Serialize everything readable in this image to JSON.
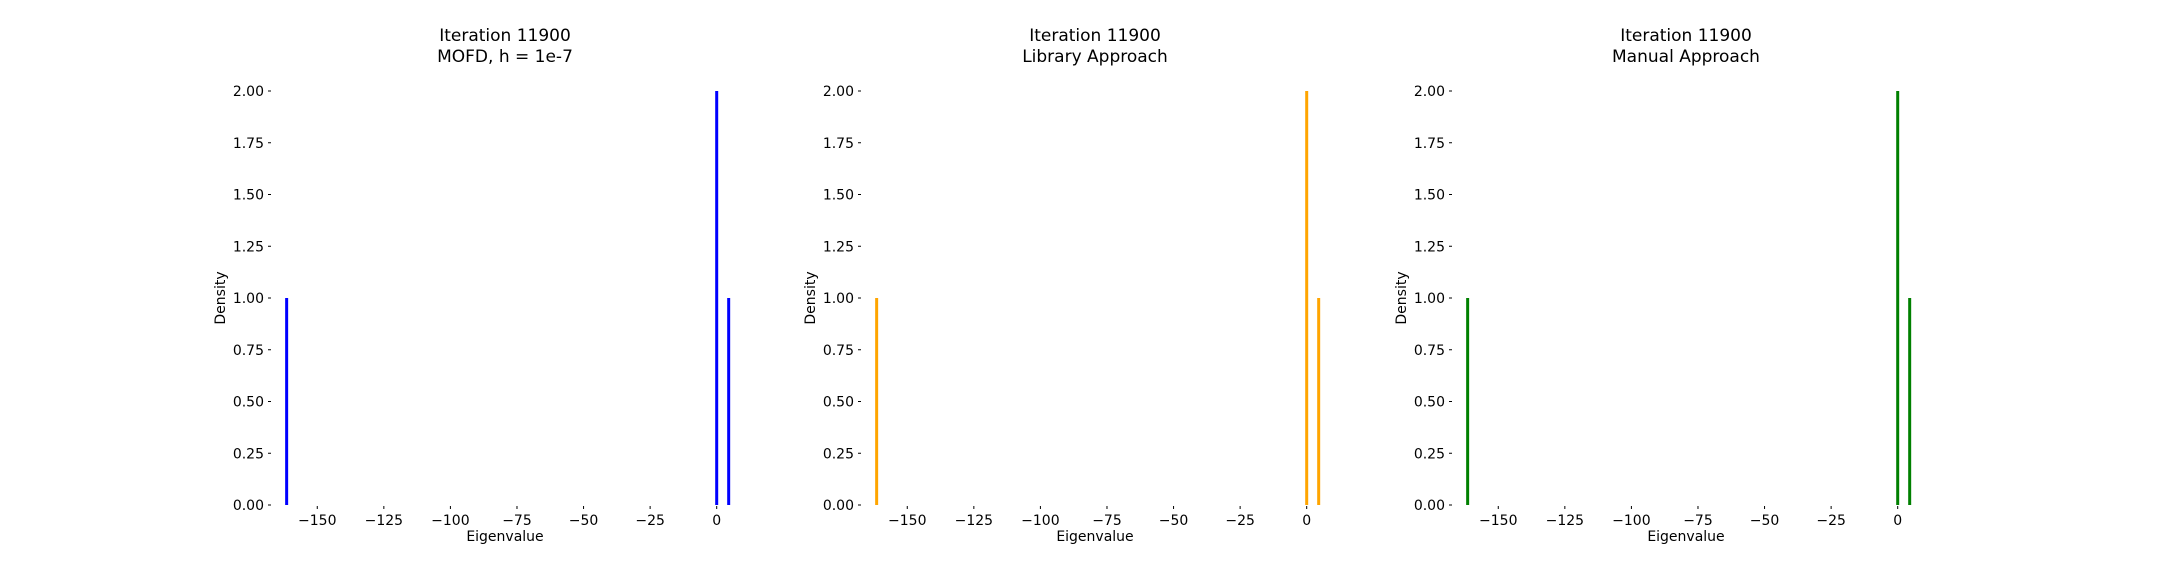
{
  "chart_data": [
    {
      "type": "bar",
      "title_lines": [
        "Iteration 11900",
        "MOFD, h = 1e-7"
      ],
      "xlabel": "Eigenvalue",
      "ylabel": "Density",
      "xlim": [
        -167,
        8
      ],
      "ylim": [
        0,
        2.0
      ],
      "xticks": [
        -150,
        -125,
        -100,
        -75,
        -50,
        -25,
        0
      ],
      "xtick_labels": [
        "−150",
        "−125",
        "−100",
        "−75",
        "−50",
        "−25",
        "0"
      ],
      "yticks": [
        0.0,
        0.25,
        0.5,
        0.75,
        1.0,
        1.25,
        1.5,
        1.75,
        2.0
      ],
      "ytick_labels": [
        "0.00",
        "0.25",
        "0.50",
        "0.75",
        "1.00",
        "1.25",
        "1.50",
        "1.75",
        "2.00"
      ],
      "color": "#0000ff",
      "grid": false,
      "bars": [
        {
          "x": -161.5,
          "density": 1.0
        },
        {
          "x": 0.0,
          "density": 2.0
        },
        {
          "x": 4.5,
          "density": 1.0
        }
      ]
    },
    {
      "type": "bar",
      "title_lines": [
        "Iteration 11900",
        "Library Approach"
      ],
      "xlabel": "Eigenvalue",
      "ylabel": "Density",
      "xlim": [
        -167,
        8
      ],
      "ylim": [
        0,
        2.0
      ],
      "xticks": [
        -150,
        -125,
        -100,
        -75,
        -50,
        -25,
        0
      ],
      "xtick_labels": [
        "−150",
        "−125",
        "−100",
        "−75",
        "−50",
        "−25",
        "0"
      ],
      "yticks": [
        0.0,
        0.25,
        0.5,
        0.75,
        1.0,
        1.25,
        1.5,
        1.75,
        2.0
      ],
      "ytick_labels": [
        "0.00",
        "0.25",
        "0.50",
        "0.75",
        "1.00",
        "1.25",
        "1.50",
        "1.75",
        "2.00"
      ],
      "color": "#ffa500",
      "grid": false,
      "bars": [
        {
          "x": -161.5,
          "density": 1.0
        },
        {
          "x": 0.0,
          "density": 2.0
        },
        {
          "x": 4.5,
          "density": 1.0
        }
      ]
    },
    {
      "type": "bar",
      "title_lines": [
        "Iteration 11900",
        "Manual Approach"
      ],
      "xlabel": "Eigenvalue",
      "ylabel": "Density",
      "xlim": [
        -167,
        8
      ],
      "ylim": [
        0,
        2.0
      ],
      "xticks": [
        -150,
        -125,
        -100,
        -75,
        -50,
        -25,
        0
      ],
      "xtick_labels": [
        "−150",
        "−125",
        "−100",
        "−75",
        "−50",
        "−25",
        "0"
      ],
      "yticks": [
        0.0,
        0.25,
        0.5,
        0.75,
        1.0,
        1.25,
        1.5,
        1.75,
        2.0
      ],
      "ytick_labels": [
        "0.00",
        "0.25",
        "0.50",
        "0.75",
        "1.00",
        "1.25",
        "1.50",
        "1.75",
        "2.00"
      ],
      "color": "#008000",
      "grid": false,
      "bars": [
        {
          "x": -161.5,
          "density": 1.0
        },
        {
          "x": 0.0,
          "density": 2.0
        },
        {
          "x": 4.5,
          "density": 1.0
        }
      ]
    }
  ]
}
